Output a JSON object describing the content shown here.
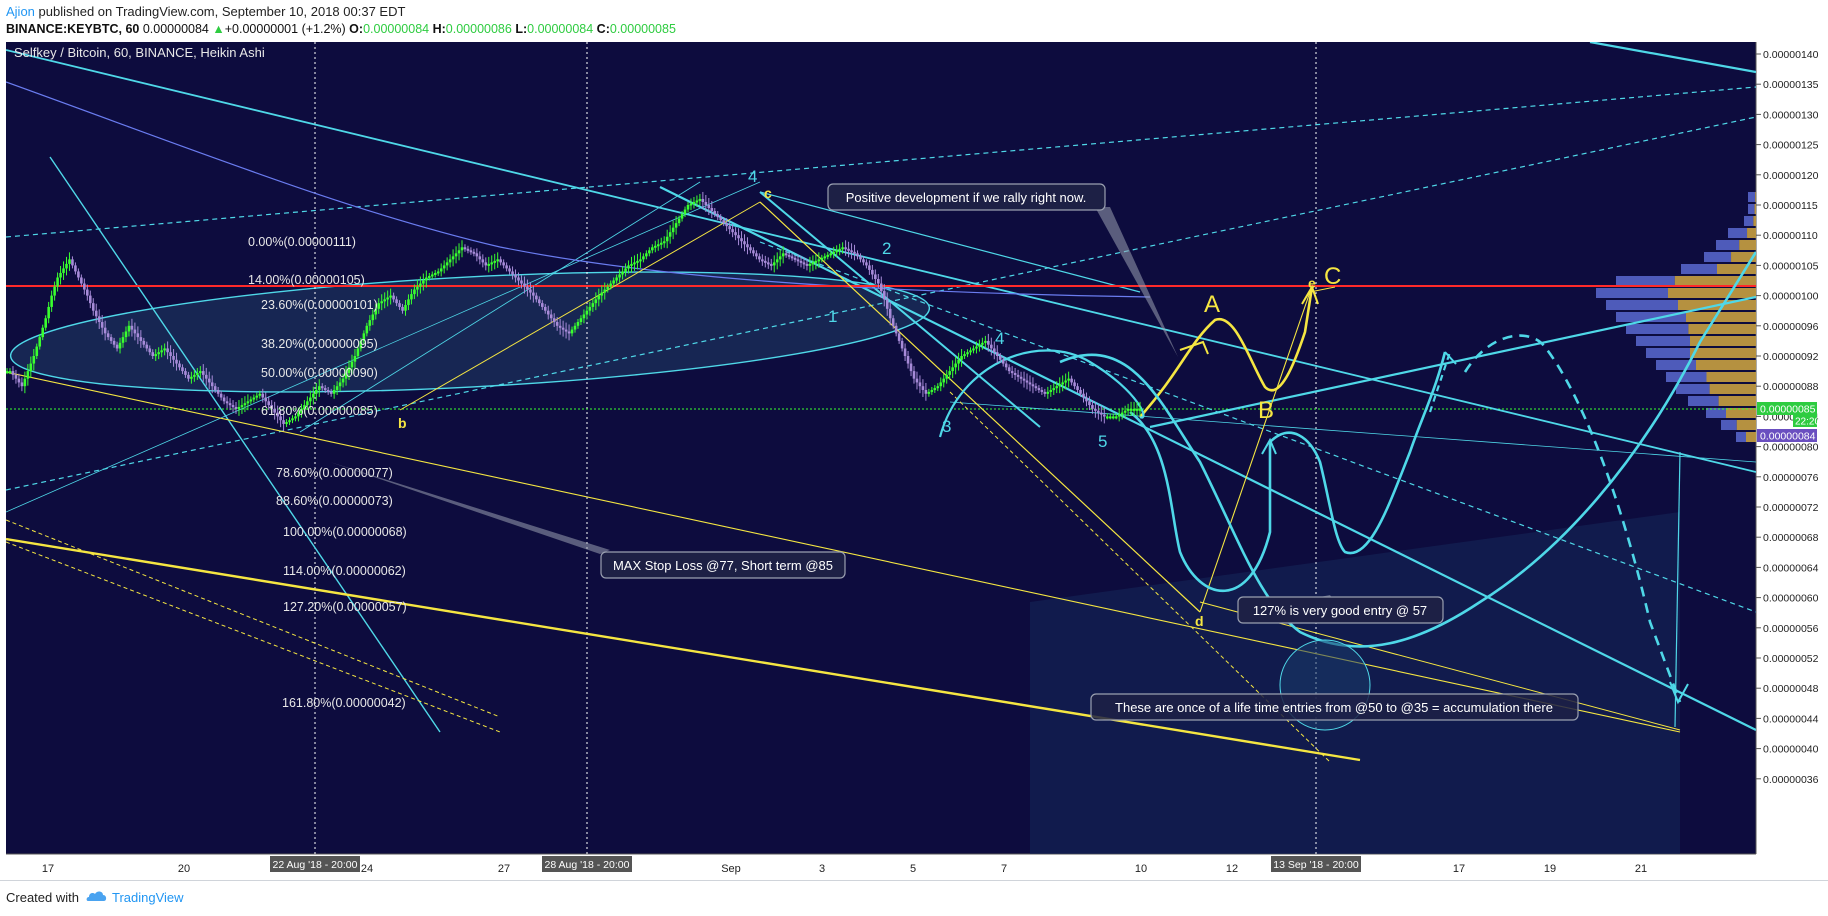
{
  "header": {
    "author": "Ajion",
    "published_text": " published on TradingView.com, September 10, 2018 00:37 EDT",
    "symbol": "BINANCE:KEYBTC, 60",
    "last": "0.00000084",
    "arrow": "▲",
    "change": "+0.00000001 (+1.2%)",
    "o_label": "O:",
    "o": "0.00000084",
    "h_label": "H:",
    "h": "0.00000086",
    "l_label": "L:",
    "l": "0.00000084",
    "c_label": "C:",
    "c": "0.00000085"
  },
  "chart": {
    "title": "Selfkey / Bitcoin, 60, BINANCE, Heikin Ashi",
    "price_tag": "0.00000085",
    "timer_tag": "22:20",
    "low_tag": "0.00000084"
  },
  "colors": {
    "background": "#0d0c3e",
    "cyan": "#4fd8e8",
    "yellow": "#f5e642",
    "red": "#ff2a2a",
    "green_candle": "#39ff2e",
    "purple_candle": "#a78bd8",
    "volume_blue": "#5a6ad0",
    "volume_gold": "#c8a040"
  },
  "chart_data": {
    "type": "candlestick",
    "y_ticks": [
      "0.00000140",
      "0.00000135",
      "0.00000130",
      "0.00000125",
      "0.00000120",
      "0.00000115",
      "0.00000110",
      "0.00000105",
      "0.00000100",
      "0.00000096",
      "0.00000092",
      "0.00000088",
      "0.00000084",
      "0.00000080",
      "0.00000076",
      "0.00000072",
      "0.00000068",
      "0.00000064",
      "0.00000060",
      "0.00000056",
      "0.00000052",
      "0.00000048",
      "0.00000044",
      "0.00000040",
      "0.00000036"
    ],
    "x_ticks": [
      "17",
      "20",
      "24",
      "27",
      "Sep",
      "3",
      "5",
      "7",
      "10",
      "12",
      "17",
      "19",
      "21"
    ],
    "time_markers": [
      "22 Aug '18 - 20:00",
      "28 Aug '18 - 20:00",
      "13 Sep '18 - 20:00"
    ],
    "fib_levels": [
      "0.00%(0.00000111)",
      "14.00%(0.00000105)",
      "23.60%(0.00000101)",
      "38.20%(0.00000095)",
      "50.00%(0.00000090)",
      "61.80%(0.00000085)",
      "78.60%(0.00000077)",
      "88.60%(0.00000073)",
      "100.00%(0.00000068)",
      "114.00%(0.00000062)",
      "127.20%(0.00000057)",
      "161.80%(0.00000042)"
    ],
    "wave_labels": [
      "4",
      "c",
      "2",
      "1",
      "3",
      "4",
      "5",
      "b",
      "d",
      "A",
      "B",
      "C",
      "5",
      "e"
    ],
    "annotations": [
      "Positive development if we rally right now.",
      "MAX Stop Loss @77, Short term @85",
      "127% is very good entry @ 57",
      "These are once of a life time entries  from @50 to @35 = accumulation there"
    ],
    "ha_closes": [
      0.9,
      0.88,
      0.92,
      0.97,
      1.03,
      1.06,
      1.02,
      0.98,
      0.95,
      0.93,
      0.96,
      0.94,
      0.92,
      0.93,
      0.91,
      0.89,
      0.9,
      0.88,
      0.86,
      0.85,
      0.86,
      0.87,
      0.85,
      0.83,
      0.84,
      0.86,
      0.88,
      0.87,
      0.89,
      0.92,
      0.96,
      0.99,
      1.0,
      0.98,
      1.01,
      1.03,
      1.04,
      1.06,
      1.08,
      1.07,
      1.05,
      1.06,
      1.04,
      1.02,
      1.0,
      0.98,
      0.96,
      0.95,
      0.97,
      0.99,
      1.01,
      1.03,
      1.05,
      1.06,
      1.08,
      1.09,
      1.12,
      1.15,
      1.16,
      1.14,
      1.12,
      1.1,
      1.08,
      1.06,
      1.05,
      1.07,
      1.06,
      1.05,
      1.06,
      1.07,
      1.08,
      1.07,
      1.05,
      1.02,
      0.97,
      0.93,
      0.89,
      0.87,
      0.88,
      0.9,
      0.92,
      0.93,
      0.94,
      0.92,
      0.9,
      0.89,
      0.88,
      0.87,
      0.88,
      0.89,
      0.87,
      0.85,
      0.84,
      0.84,
      0.85,
      0.85
    ]
  },
  "footer": {
    "created_with": "Created with",
    "brand": "TradingView"
  }
}
